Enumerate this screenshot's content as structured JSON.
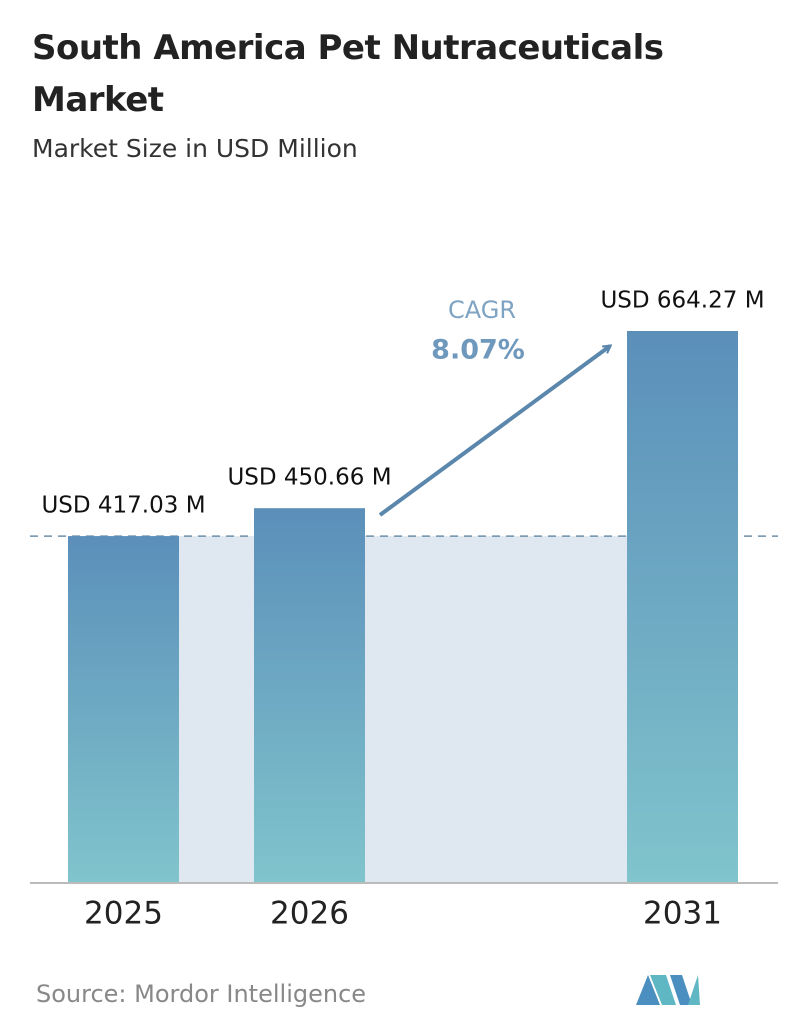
{
  "chart_data": {
    "type": "bar",
    "title": "South America Pet Nutraceuticals Market",
    "subtitle": "Market Size in USD Million",
    "categories": [
      "2025",
      "2026",
      "2031"
    ],
    "values": [
      417.03,
      450.66,
      664.27
    ],
    "value_labels": [
      "USD 417.03 M",
      "USD 450.66 M",
      "USD 664.27 M"
    ],
    "annotations": [
      "CAGR",
      "8.07%"
    ],
    "gradient": [
      "#5b8fba",
      "#80c4cc"
    ],
    "source": "Source:  Mordor Intelligence"
  }
}
